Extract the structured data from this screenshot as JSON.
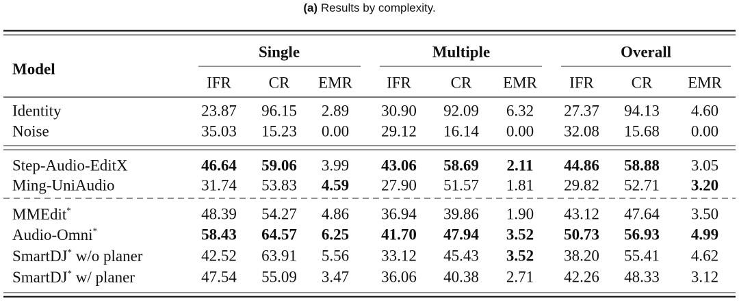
{
  "caption": {
    "label": "(a)",
    "text": "Results by complexity."
  },
  "table": {
    "model_header": "Model",
    "groups": [
      "Single",
      "Multiple",
      "Overall"
    ],
    "metrics": [
      "IFR",
      "CR",
      "EMR",
      "IFR",
      "CR",
      "EMR",
      "IFR",
      "CR",
      "EMR"
    ],
    "sections": [
      [
        {
          "model": {
            "name": "Identity"
          },
          "values": [
            "23.87",
            "96.15",
            "2.89",
            "30.90",
            "92.09",
            "6.32",
            "27.37",
            "94.13",
            "4.60"
          ],
          "bold": []
        },
        {
          "model": {
            "name": "Noise"
          },
          "values": [
            "35.03",
            "15.23",
            "0.00",
            "29.12",
            "16.14",
            "0.00",
            "32.08",
            "15.68",
            "0.00"
          ],
          "bold": []
        }
      ],
      [
        {
          "model": {
            "name": "Step-Audio-EditX"
          },
          "values": [
            "46.64",
            "59.06",
            "3.99",
            "43.06",
            "58.69",
            "2.11",
            "44.86",
            "58.88",
            "3.05"
          ],
          "bold": [
            0,
            1,
            3,
            4,
            5,
            6,
            7
          ]
        },
        {
          "model": {
            "name": "Ming-UniAudio"
          },
          "values": [
            "31.74",
            "53.83",
            "4.59",
            "27.90",
            "51.57",
            "1.81",
            "29.82",
            "52.71",
            "3.20"
          ],
          "bold": [
            2,
            8
          ]
        }
      ],
      [
        {
          "model": {
            "name": "MMEdit",
            "sup": "*"
          },
          "values": [
            "48.39",
            "54.27",
            "4.86",
            "36.94",
            "39.86",
            "1.90",
            "43.12",
            "47.64",
            "3.50"
          ],
          "bold": []
        },
        {
          "model": {
            "name": "Audio-Omni",
            "sup": "*"
          },
          "values": [
            "58.43",
            "64.57",
            "6.25",
            "41.70",
            "47.94",
            "3.52",
            "50.73",
            "56.93",
            "4.99"
          ],
          "bold": [
            0,
            1,
            2,
            3,
            4,
            5,
            6,
            7,
            8
          ]
        },
        {
          "model": {
            "name": "SmartDJ",
            "sup": "*",
            "suffix": " w/o planer"
          },
          "values": [
            "42.52",
            "63.91",
            "5.56",
            "33.12",
            "45.43",
            "3.52",
            "38.20",
            "55.41",
            "4.62"
          ],
          "bold": [
            5
          ]
        },
        {
          "model": {
            "name": "SmartDJ",
            "sup": "*",
            "suffix": " w/ planer"
          },
          "values": [
            "47.54",
            "55.09",
            "3.47",
            "36.06",
            "40.38",
            "2.71",
            "42.26",
            "48.33",
            "3.12"
          ],
          "bold": []
        }
      ]
    ]
  }
}
